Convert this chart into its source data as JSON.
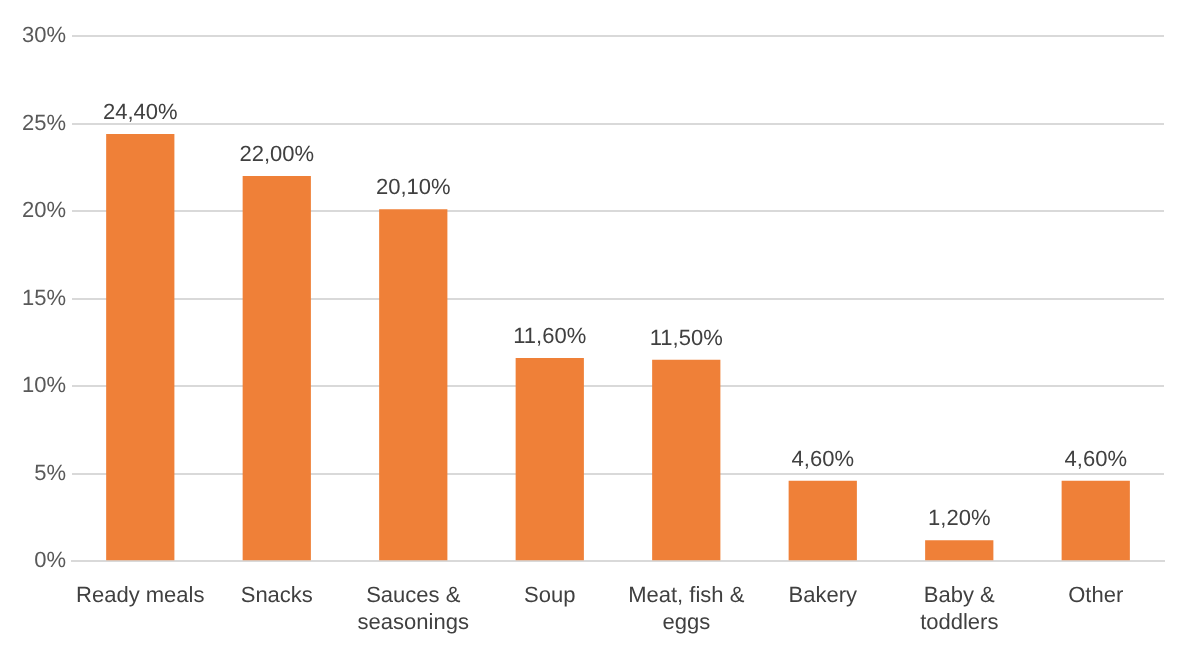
{
  "chart_data": {
    "type": "bar",
    "categories": [
      "Ready meals",
      "Snacks",
      "Sauces & seasonings",
      "Soup",
      "Meat, fish & eggs",
      "Bakery",
      "Baby & toddlers",
      "Other"
    ],
    "values": [
      24.4,
      22.0,
      20.1,
      11.6,
      11.5,
      4.6,
      1.2,
      4.6
    ],
    "value_labels": [
      "24,40%",
      "22,00%",
      "20,10%",
      "11,60%",
      "11,50%",
      "4,60%",
      "1,20%",
      "4,60%"
    ],
    "color": "#ef8038",
    "ylim": [
      0,
      30
    ],
    "yticks": [
      {
        "value": 0,
        "label": "0%"
      },
      {
        "value": 5,
        "label": "5%"
      },
      {
        "value": 10,
        "label": "10%"
      },
      {
        "value": 15,
        "label": "15%"
      },
      {
        "value": 20,
        "label": "20%"
      },
      {
        "value": 25,
        "label": "25%"
      },
      {
        "value": 30,
        "label": "30%"
      }
    ],
    "grid": "y",
    "legend": false
  }
}
